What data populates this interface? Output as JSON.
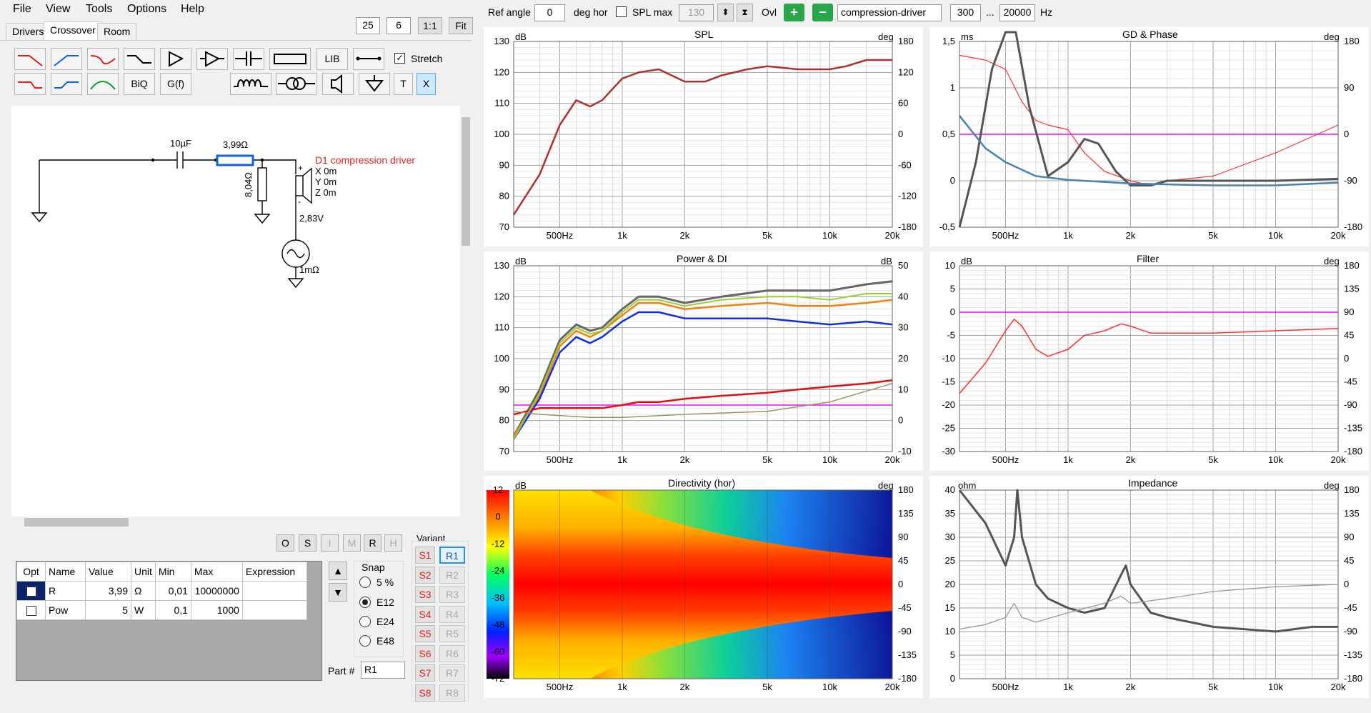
{
  "menu": {
    "file": "File",
    "view": "View",
    "tools": "Tools",
    "options": "Options",
    "help": "Help"
  },
  "toolbar_top": {
    "v1": "25",
    "v2": "6",
    "ratio_label": "1:1",
    "fit_label": "Fit"
  },
  "tabs": [
    "Drivers",
    "Crossover",
    "Room"
  ],
  "tools_row1": {
    "lib": "LIB",
    "stretch": "Stretch",
    "stretch_checked": true
  },
  "tools_row2": {
    "biq": "BiQ",
    "gf": "G(f)",
    "t": "T",
    "x": "X"
  },
  "schematic": {
    "cap_label": "10µF",
    "res_label": "3,99Ω",
    "res2_label": "8,04Ω",
    "driver_name": "D1 compression driver",
    "x": "X 0m",
    "y": "Y 0m",
    "z": "Z 0m",
    "voltage": "2,83V",
    "source_r": "1mΩ",
    "plus": "+",
    "minus": "-",
    "driver_color": "#e02020"
  },
  "small_buttons": [
    "O",
    "S",
    "I",
    "M",
    "R",
    "H"
  ],
  "grid": {
    "headers": [
      "Opt",
      "Name",
      "Value",
      "Unit",
      "Min",
      "Max",
      "Expression"
    ],
    "rows": [
      {
        "opt": false,
        "name": "R",
        "value": "3,99",
        "unit": "Ω",
        "min": "0,01",
        "max": "10000000",
        "expr": ""
      },
      {
        "opt": false,
        "name": "Pow",
        "value": "5",
        "unit": "W",
        "min": "0,1",
        "max": "1000",
        "expr": ""
      }
    ]
  },
  "snap": {
    "label": "Snap",
    "options": [
      "5 %",
      "E12",
      "E24",
      "E48"
    ],
    "selected": "E12"
  },
  "part": {
    "label": "Part #",
    "value": "R1"
  },
  "variant": {
    "label": "Variant",
    "s": [
      "S1",
      "S2",
      "S3",
      "S4",
      "S5",
      "S6",
      "S7",
      "S8"
    ],
    "r": [
      "R1",
      "R2",
      "R3",
      "R4",
      "R5",
      "R6",
      "R7",
      "R8"
    ],
    "selected": "R1"
  },
  "top": {
    "ref_angle_label": "Ref angle",
    "ref_angle": "0",
    "deg_hor": "deg hor",
    "spl_max_label": "SPL max",
    "spl_max": "130",
    "ovl": "Ovl",
    "driver_field": "compression-driver",
    "f_low": "300",
    "dots": "...",
    "f_high": "20000",
    "hz": "Hz"
  },
  "x_ticks": [
    "500Hz",
    "1k",
    "2k",
    "5k",
    "10k",
    "20k"
  ],
  "colors": {
    "accent_green": "#2aa54a",
    "selected_blue": "#1e90ff",
    "curve_red": "#b03030",
    "magenta": "#ff00ff"
  },
  "panels": {
    "spl": {
      "title": "SPL",
      "left_unit": "dB",
      "right_unit": "deg",
      "left_ticks": [
        "130",
        "120",
        "110",
        "100",
        "90",
        "80",
        "70"
      ],
      "right_ticks": [
        "180",
        "120",
        "60",
        "0",
        "-60",
        "-120",
        "-180"
      ]
    },
    "gd": {
      "title": "GD & Phase",
      "left_unit": "ms",
      "right_unit": "deg",
      "left_ticks": [
        "1,5",
        "1",
        "0,5",
        "0",
        "-0,5"
      ],
      "right_ticks": [
        "180",
        "90",
        "0",
        "-90",
        "-180"
      ]
    },
    "power": {
      "title": "Power & DI",
      "left_unit": "dB",
      "right_unit": "dB",
      "left_ticks": [
        "130",
        "120",
        "110",
        "100",
        "90",
        "80",
        "70"
      ],
      "right_ticks": [
        "50",
        "40",
        "30",
        "20",
        "10",
        "0",
        "-10"
      ]
    },
    "filter": {
      "title": "Filter",
      "left_unit": "dB",
      "right_unit": "deg",
      "left_ticks": [
        "10",
        "5",
        "0",
        "-5",
        "-10",
        "-15",
        "-20",
        "-25",
        "-30"
      ],
      "right_ticks": [
        "180",
        "135",
        "90",
        "45",
        "0",
        "-45",
        "-90",
        "-135",
        "-180"
      ]
    },
    "directivity": {
      "title": "Directivity (hor)",
      "left_unit": "dB",
      "right_unit": "deg",
      "left_ticks": [
        "12",
        "0",
        "-12",
        "-24",
        "-36",
        "-48",
        "-60",
        "-72"
      ],
      "right_ticks": [
        "180",
        "135",
        "90",
        "45",
        "0",
        "-45",
        "-90",
        "-135",
        "-180"
      ]
    },
    "impedance": {
      "title": "Impedance",
      "left_unit": "ohm",
      "right_unit": "deg",
      "left_ticks": [
        "40",
        "35",
        "30",
        "25",
        "20",
        "15",
        "10",
        "5",
        "0"
      ],
      "right_ticks": [
        "180",
        "135",
        "90",
        "45",
        "0",
        "-45",
        "-90",
        "-135",
        "-180"
      ]
    }
  },
  "chart_data": [
    {
      "type": "line",
      "title": "SPL",
      "ylabel": "dB",
      "ylim": [
        70,
        130
      ],
      "x_scale": "log",
      "x": [
        300,
        400,
        500,
        600,
        700,
        800,
        1000,
        1200,
        1500,
        2000,
        2500,
        3000,
        4000,
        5000,
        7000,
        10000,
        12000,
        15000,
        20000
      ],
      "series": [
        {
          "values": [
            74,
            87,
            103,
            111,
            109,
            111,
            118,
            120,
            121,
            117,
            117,
            119,
            121,
            122,
            121,
            121,
            122,
            124,
            124
          ]
        }
      ]
    },
    {
      "type": "line",
      "title": "GD & Phase",
      "ylabel": "ms",
      "ylim": [
        -0.5,
        1.5
      ],
      "x_scale": "log",
      "x": [
        300,
        400,
        500,
        600,
        700,
        800,
        1000,
        1200,
        1500,
        2000,
        2500,
        3000,
        5000,
        10000,
        20000
      ],
      "series": [
        {
          "values": [
            1.35,
            1.3,
            1.2,
            0.85,
            0.65,
            0.6,
            0.55,
            0.3,
            0.1,
            0,
            -0.05,
            0,
            0.05,
            0.3,
            0.6
          ]
        }
      ]
    },
    {
      "type": "line",
      "title": "Power & DI",
      "ylabel": "dB",
      "ylim": [
        70,
        130
      ],
      "x_scale": "log",
      "x": [
        300,
        400,
        500,
        600,
        700,
        800,
        1000,
        1200,
        1500,
        2000,
        3000,
        5000,
        7000,
        10000,
        15000,
        20000
      ],
      "series": [
        {
          "values": [
            75,
            90,
            106,
            111,
            109,
            110,
            116,
            120,
            120,
            118,
            120,
            122,
            122,
            122,
            124,
            125
          ]
        },
        {
          "values": [
            75,
            88,
            104,
            109,
            107,
            109,
            114,
            118,
            118,
            116,
            117,
            118,
            117,
            117,
            118,
            119
          ]
        },
        {
          "values": [
            74,
            87,
            102,
            107,
            105,
            107,
            112,
            115,
            115,
            113,
            113,
            113,
            112,
            111,
            112,
            111
          ]
        },
        {
          "values": [
            82,
            84,
            84,
            84,
            84,
            84,
            85,
            86,
            86,
            87,
            88,
            89,
            90,
            91,
            92,
            93
          ]
        }
      ]
    },
    {
      "type": "line",
      "title": "Filter",
      "ylabel": "dB",
      "ylim": [
        -30,
        10
      ],
      "x_scale": "log",
      "x": [
        300,
        400,
        500,
        550,
        600,
        700,
        800,
        1000,
        1200,
        1500,
        1800,
        2000,
        2500,
        3000,
        5000,
        10000,
        20000
      ],
      "series": [
        {
          "values": [
            -17.5,
            -11,
            -4,
            -1.5,
            -3,
            -8,
            -9.5,
            -8,
            -5,
            -4,
            -2.5,
            -3,
            -4.5,
            -4.5,
            -4.5,
            -4,
            -3.5
          ]
        }
      ]
    },
    {
      "type": "line",
      "title": "Impedance",
      "ylabel": "ohm",
      "ylim": [
        0,
        40
      ],
      "x_scale": "log",
      "x": [
        300,
        400,
        500,
        550,
        570,
        600,
        700,
        800,
        1000,
        1200,
        1500,
        1800,
        1900,
        2000,
        2500,
        3000,
        5000,
        10000,
        15000,
        20000
      ],
      "series": [
        {
          "values": [
            40,
            33,
            24,
            30,
            40,
            30,
            20,
            17,
            15,
            14,
            15,
            22,
            24,
            20,
            14,
            13,
            11,
            10,
            11,
            11
          ]
        }
      ]
    }
  ]
}
